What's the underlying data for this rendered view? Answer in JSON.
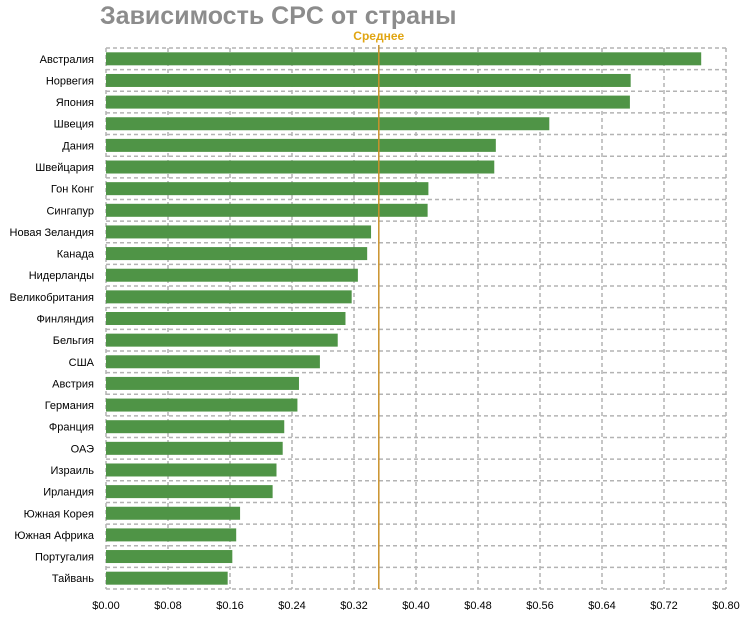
{
  "chart_data": {
    "type": "bar",
    "orientation": "horizontal",
    "title": "Зависимость CPC от страны",
    "average_label": "Среднее",
    "average_value": 0.352,
    "bar_color": "#4f9446",
    "average_line_color": "#c9922c",
    "grid": true,
    "categories": [
      "Австралия",
      "Норвегия",
      "Япония",
      "Швеция",
      "Дания",
      "Швейцария",
      "Гон Конг",
      "Сингапур",
      "Новая Зеландия",
      "Канада",
      "Нидерланды",
      "Великобритания",
      "Финляндия",
      "Бельгия",
      "США",
      "Австрия",
      "Германия",
      "Франция",
      "ОАЭ",
      "Израиль",
      "Ирландия",
      "Южная Корея",
      "Южная Африка",
      "Португалия",
      "Тайвань"
    ],
    "values": [
      0.768,
      0.677,
      0.676,
      0.572,
      0.503,
      0.501,
      0.416,
      0.415,
      0.342,
      0.337,
      0.325,
      0.317,
      0.309,
      0.299,
      0.276,
      0.249,
      0.247,
      0.23,
      0.228,
      0.22,
      0.215,
      0.173,
      0.168,
      0.163,
      0.157
    ],
    "xlim": [
      0,
      0.8
    ],
    "x_ticks": [
      "$0.00",
      "$0.08",
      "$0.16",
      "$0.24",
      "$0.32",
      "$0.40",
      "$0.48",
      "$0.56",
      "$0.64",
      "$0.72",
      "$0.80"
    ],
    "x_tick_values": [
      0,
      0.08,
      0.16,
      0.24,
      0.32,
      0.4,
      0.48,
      0.56,
      0.64,
      0.72,
      0.8
    ]
  }
}
